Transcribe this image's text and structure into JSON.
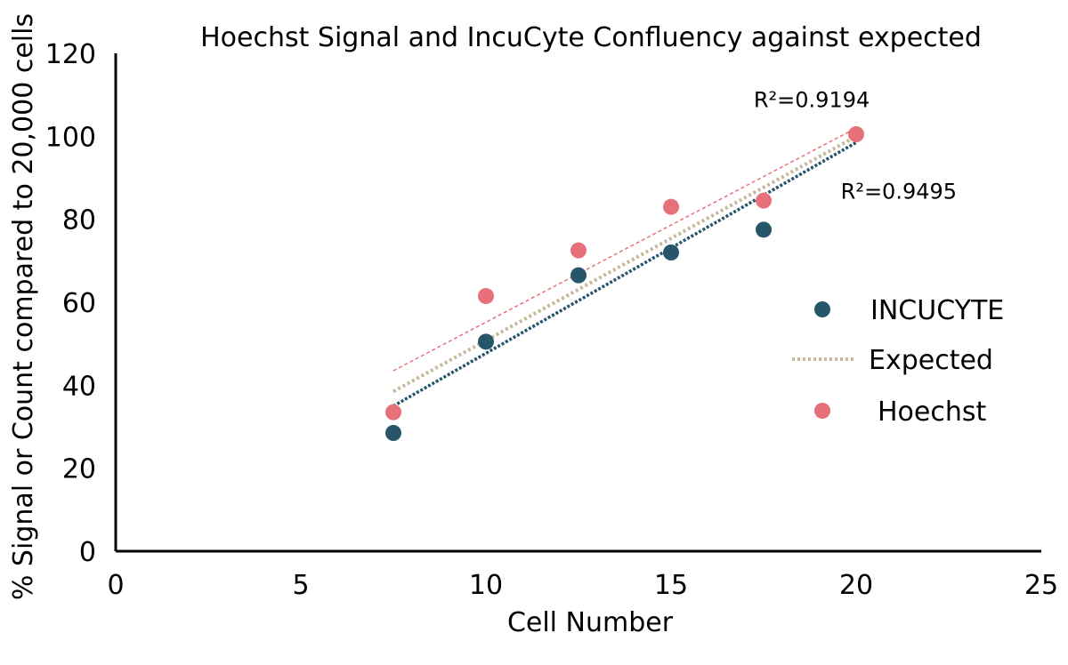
{
  "chart_data": {
    "type": "scatter",
    "title": "Hoechst Signal and IncuCyte Confluency against expected",
    "xlabel": "Cell Number",
    "ylabel": "% Signal or Count compared to 20,000 cells",
    "xlim": [
      0,
      25
    ],
    "ylim": [
      0,
      120
    ],
    "x_ticks": [
      "0",
      "5",
      "10",
      "15",
      "20",
      "25"
    ],
    "y_ticks": [
      "0",
      "20",
      "40",
      "60",
      "80",
      "100",
      "120"
    ],
    "grid": false,
    "legend_position": "right",
    "series": [
      {
        "name": "INCUCYTE",
        "kind": "scatter",
        "color": "#27566b",
        "x": [
          7.5,
          10,
          12.5,
          15,
          17.5
        ],
        "y": [
          28.5,
          50.5,
          66.5,
          72,
          77.5
        ],
        "trendline": {
          "x": [
            7.5,
            20
          ],
          "y": [
            35,
            98.5
          ]
        }
      },
      {
        "name": "Expected",
        "kind": "line",
        "color": "#c8b99c",
        "x": [
          7.5,
          20
        ],
        "y": [
          38.5,
          100
        ]
      },
      {
        "name": "Hoechst",
        "kind": "scatter",
        "color": "#e8707a",
        "x": [
          7.5,
          10,
          12.5,
          15,
          17.5,
          20
        ],
        "y": [
          33.5,
          61.5,
          72.5,
          83,
          84.5,
          100.5
        ],
        "trendline": {
          "x": [
            7.5,
            20
          ],
          "y": [
            43.5,
            102
          ]
        }
      }
    ],
    "annotations": [
      {
        "text": "R²=0.9194",
        "x": 18.8,
        "y": 107
      },
      {
        "text": "R²=0.9495",
        "x": 21.15,
        "y": 85
      }
    ]
  }
}
